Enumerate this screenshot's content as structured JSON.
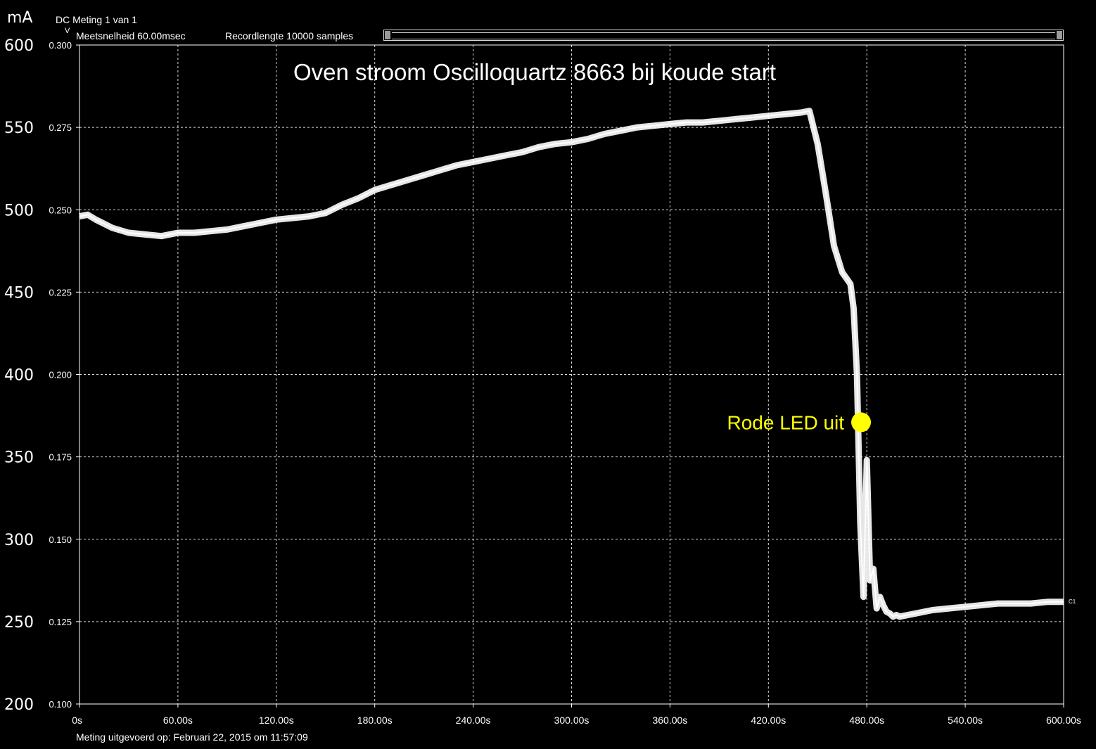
{
  "header": {
    "meting": "DC Meting 1 van 1",
    "meetsnelheid": "Meetsnelheid 60.00msec",
    "recordlengte": "Recordlengte 10000 samples",
    "unit_ma": "mA",
    "unit_v": "V"
  },
  "footer": {
    "timestamp": "Meting uitgevoerd op:  Februari 22, 2015 om 11:57:09"
  },
  "channel_marker": "C1",
  "colors": {
    "background": "#000000",
    "trace": "#ffffff",
    "grid": "#ffffff",
    "annotation": "#ffff00"
  },
  "chart_data": {
    "type": "line",
    "title": "Oven stroom Oscilloquartz 8663 bij koude start",
    "xlabel": "",
    "ylabel": "mA",
    "xlim": [
      0,
      600
    ],
    "ylim_ma": [
      200,
      600
    ],
    "ylim_v": [
      0.1,
      0.3
    ],
    "x_tick_labels": [
      "0s",
      "60.00s",
      "120.00s",
      "180.00s",
      "240.00s",
      "300.00s",
      "360.00s",
      "420.00s",
      "480.00s",
      "540.00s",
      "600.00s"
    ],
    "y_tick_labels_ma": [
      "600",
      "550",
      "500",
      "450",
      "400",
      "350",
      "300",
      "250",
      "200"
    ],
    "y_tick_labels_v": [
      "0.300",
      "0.275",
      "0.250",
      "0.225",
      "0.200",
      "0.175",
      "0.150",
      "0.125",
      "0.100"
    ],
    "grid": true,
    "series": [
      {
        "x": [
          0,
          5,
          10,
          20,
          30,
          40,
          50,
          60,
          70,
          80,
          90,
          100,
          110,
          120,
          130,
          140,
          150,
          160,
          170,
          180,
          190,
          200,
          210,
          220,
          230,
          240,
          250,
          260,
          270,
          280,
          290,
          300,
          310,
          320,
          330,
          340,
          350,
          360,
          370,
          380,
          390,
          400,
          410,
          420,
          430,
          440,
          445,
          450,
          455,
          460,
          465,
          470,
          472,
          474,
          476,
          478,
          480,
          482,
          484,
          486,
          488,
          490,
          492,
          494,
          496,
          498,
          500,
          510,
          520,
          530,
          540,
          550,
          560,
          570,
          580,
          590,
          600
        ],
        "y": [
          496,
          497,
          494,
          489,
          486,
          485,
          484,
          486,
          486,
          487,
          488,
          490,
          492,
          494,
          495,
          496,
          498,
          503,
          507,
          512,
          515,
          518,
          521,
          524,
          527,
          529,
          531,
          533,
          535,
          538,
          540,
          541,
          543,
          546,
          548,
          550,
          551,
          552,
          553,
          553,
          554,
          555,
          556,
          557,
          558,
          559,
          560,
          540,
          510,
          478,
          462,
          455,
          440,
          400,
          310,
          265,
          348,
          275,
          282,
          258,
          265,
          260,
          256,
          255,
          253,
          254,
          253,
          255,
          257,
          258,
          259,
          260,
          261,
          261,
          261,
          262,
          262
        ]
      }
    ],
    "annotations": [
      {
        "text": "Rode LED uit",
        "x": 476.5,
        "y": 371,
        "marker": "filled-circle"
      }
    ]
  }
}
